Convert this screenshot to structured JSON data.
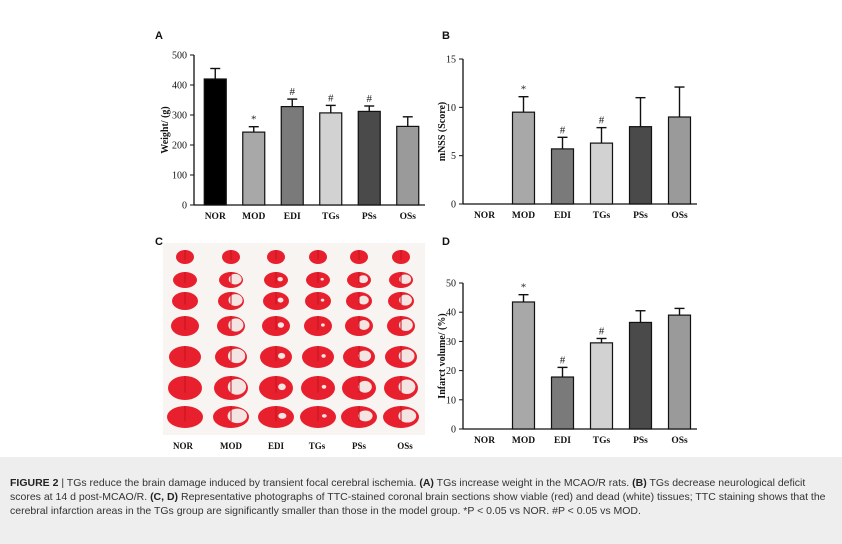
{
  "panels": {
    "a": {
      "letter": "A"
    },
    "b": {
      "letter": "B"
    },
    "c": {
      "letter": "C",
      "group_labels": [
        "NOR",
        "MOD",
        "EDI",
        "TGs",
        "PSs",
        "OSs"
      ]
    },
    "d": {
      "letter": "D"
    }
  },
  "chart_data": [
    {
      "type": "bar",
      "panel": "A",
      "categories": [
        "NOR",
        "MOD",
        "EDI",
        "TGs",
        "PSs",
        "OSs"
      ],
      "values": [
        420,
        243,
        328,
        307,
        312,
        262
      ],
      "errors": [
        35,
        18,
        25,
        25,
        18,
        32
      ],
      "annotations": [
        "",
        "*",
        "#",
        "#",
        "#",
        ""
      ],
      "ylabel": "Weight/ (g)",
      "ylim": [
        0,
        500
      ],
      "yticks": [
        0,
        100,
        200,
        300,
        400,
        500
      ],
      "colors": [
        "#000000",
        "#a8a8a8",
        "#7a7a7a",
        "#d2d2d2",
        "#4a4a4a",
        "#9a9a9a"
      ]
    },
    {
      "type": "bar",
      "panel": "B",
      "categories": [
        "NOR",
        "MOD",
        "EDI",
        "TGs",
        "PSs",
        "OSs"
      ],
      "values": [
        0,
        9.5,
        5.7,
        6.3,
        8.0,
        9.0
      ],
      "errors": [
        0,
        1.6,
        1.2,
        1.6,
        3.0,
        3.1
      ],
      "annotations": [
        "",
        "*",
        "#",
        "#",
        "",
        ""
      ],
      "ylabel": "mNSS (Score)",
      "ylim": [
        0,
        15
      ],
      "yticks": [
        0,
        5,
        10,
        15
      ],
      "colors": [
        "#000000",
        "#a8a8a8",
        "#7a7a7a",
        "#d2d2d2",
        "#4a4a4a",
        "#9a9a9a"
      ]
    },
    {
      "type": "bar",
      "panel": "D",
      "categories": [
        "NOR",
        "MOD",
        "EDI",
        "TGs",
        "PSs",
        "OSs"
      ],
      "values": [
        0,
        43.5,
        17.8,
        29.5,
        36.5,
        39.0
      ],
      "errors": [
        0,
        2.5,
        3.3,
        1.5,
        4.0,
        2.3
      ],
      "annotations": [
        "",
        "*",
        "#",
        "#",
        "",
        ""
      ],
      "ylabel": "Infarct volume/ (%)",
      "ylim": [
        0,
        50
      ],
      "yticks": [
        0,
        10,
        20,
        30,
        40,
        50
      ],
      "colors": [
        "#000000",
        "#a8a8a8",
        "#7a7a7a",
        "#d2d2d2",
        "#4a4a4a",
        "#9a9a9a"
      ]
    }
  ],
  "caption": {
    "label": "FIGURE 2",
    "text_1": " | TGs reduce the brain damage induced by transient focal cerebral ischemia. ",
    "a_label": "(A)",
    "text_2": " TGs increase weight in the MCAO/R rats. ",
    "b_label": "(B)",
    "text_3": " TGs decrease neurological deficit scores at 14 d post-MCAO/R. ",
    "cd_label": "(C, D)",
    "text_4": " Representative photographs of TTC-stained coronal brain sections show viable (red) and dead (white) tissues; TTC staining shows that the cerebral infarction areas in the TGs group are significantly smaller than those in the model group. *P < 0.05 vs NOR. #P < 0.05 vs MOD."
  }
}
